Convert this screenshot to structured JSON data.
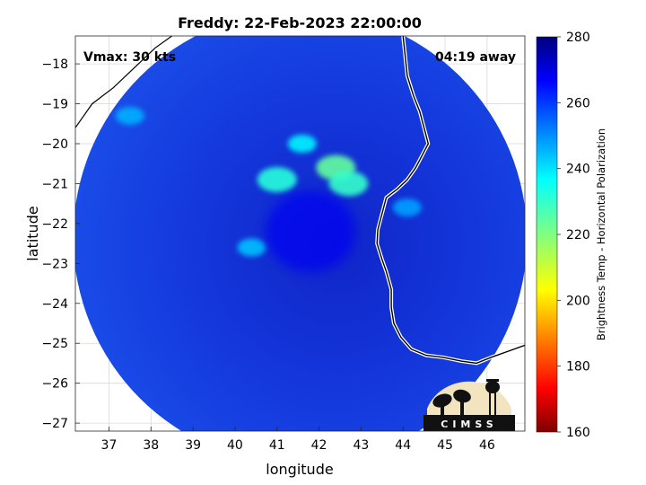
{
  "chart_data": {
    "type": "heatmap",
    "title": "Freddy: 22-Feb-2023 22:00:00",
    "xlabel": "longitude",
    "ylabel": "latitude",
    "xlim": [
      36.2,
      46.9
    ],
    "ylim": [
      -27.2,
      -17.3
    ],
    "x_ticks": [
      37,
      38,
      39,
      40,
      41,
      42,
      43,
      44,
      45,
      46
    ],
    "y_ticks": [
      -18,
      -19,
      -20,
      -21,
      -22,
      -23,
      -24,
      -25,
      -26,
      -27
    ],
    "grid": true,
    "annotations": {
      "vmax": "Vmax: 30 kts",
      "distance": "04:19 away",
      "logo": "CIMSS"
    },
    "colorbar": {
      "label": "Brightness Temp - Horizontal Polarization",
      "min": 160,
      "max": 280,
      "ticks": [
        280,
        260,
        240,
        220,
        200,
        180,
        160
      ],
      "colormap": "jet"
    },
    "swath": {
      "center_lon": 41.55,
      "center_lat": -22.35,
      "radius_deg": 5.4,
      "background_value": 262
    },
    "features": [
      {
        "name": "outer rainband west",
        "lon": 41.0,
        "lat": -20.9,
        "value": 232
      },
      {
        "name": "outer rainband north",
        "lon": 41.6,
        "lat": -20.0,
        "value": 238
      },
      {
        "name": "rainband core",
        "lon": 42.4,
        "lat": -20.6,
        "value": 224
      },
      {
        "name": "rainband east",
        "lon": 42.7,
        "lat": -21.0,
        "value": 230
      },
      {
        "name": "southern arc",
        "lon": 40.4,
        "lat": -22.6,
        "value": 244
      },
      {
        "name": "northwest patch",
        "lon": 37.5,
        "lat": -19.3,
        "value": 246
      },
      {
        "name": "coastal patch",
        "lon": 44.1,
        "lat": -21.6,
        "value": 248
      },
      {
        "name": "eye region",
        "lon": 41.8,
        "lat": -22.2,
        "value": 268
      }
    ],
    "coastline": [
      [
        44.0,
        -17.3
      ],
      [
        44.05,
        -17.8
      ],
      [
        44.1,
        -18.3
      ],
      [
        44.25,
        -18.8
      ],
      [
        44.4,
        -19.2
      ],
      [
        44.5,
        -19.6
      ],
      [
        44.6,
        -20.0
      ],
      [
        44.45,
        -20.3
      ],
      [
        44.3,
        -20.6
      ],
      [
        44.1,
        -20.9
      ],
      [
        43.85,
        -21.15
      ],
      [
        43.6,
        -21.35
      ],
      [
        43.5,
        -21.75
      ],
      [
        43.4,
        -22.15
      ],
      [
        43.38,
        -22.5
      ],
      [
        43.5,
        -22.9
      ],
      [
        43.6,
        -23.2
      ],
      [
        43.72,
        -23.65
      ],
      [
        43.72,
        -24.1
      ],
      [
        43.78,
        -24.5
      ],
      [
        43.95,
        -24.85
      ],
      [
        44.2,
        -25.15
      ],
      [
        44.55,
        -25.3
      ],
      [
        44.95,
        -25.35
      ],
      [
        45.4,
        -25.45
      ],
      [
        45.75,
        -25.5
      ],
      [
        46.1,
        -25.35
      ],
      [
        46.5,
        -25.2
      ],
      [
        46.9,
        -25.05
      ]
    ],
    "mainland_coast": [
      [
        36.2,
        -19.6
      ],
      [
        36.6,
        -19.0
      ],
      [
        37.1,
        -18.6
      ],
      [
        37.6,
        -18.1
      ],
      [
        38.1,
        -17.6
      ],
      [
        38.5,
        -17.3
      ]
    ]
  }
}
